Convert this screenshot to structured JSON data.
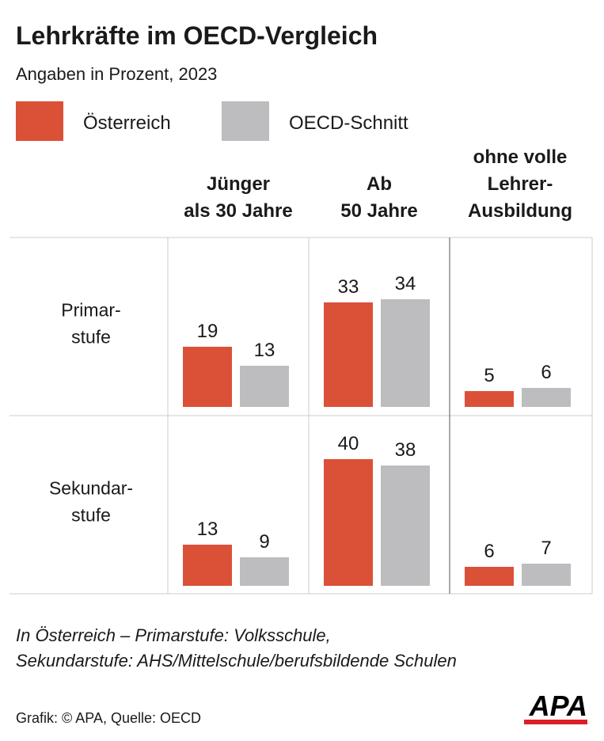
{
  "chart_data": {
    "type": "bar",
    "title": "Lehrkräfte im OECD-Vergleich",
    "subtitle": "Angaben in Prozent, 2023",
    "columns": [
      [
        "Jünger",
        "als 30 Jahre"
      ],
      [
        "Ab",
        "50 Jahre"
      ],
      [
        "ohne volle",
        "Lehrer-",
        "Ausbildung"
      ]
    ],
    "rows": [
      [
        "Primar-",
        "stufe"
      ],
      [
        "Sekundar-",
        "stufe"
      ]
    ],
    "series": [
      {
        "name": "Österreich",
        "color": "#db5138",
        "values": [
          [
            19,
            33,
            5
          ],
          [
            13,
            40,
            6
          ]
        ]
      },
      {
        "name": "OECD-Schnitt",
        "color": "#bdbdc0",
        "values": [
          [
            13,
            34,
            6
          ],
          [
            9,
            38,
            7
          ]
        ]
      }
    ],
    "notes": [
      "In Österreich – Primarstufe: Volksschule,",
      "Sekundarstufe: AHS/Mittelschule/berufsbildende Schulen"
    ],
    "source": "Grafik: © APA, Quelle: OECD",
    "logo": "APA"
  }
}
